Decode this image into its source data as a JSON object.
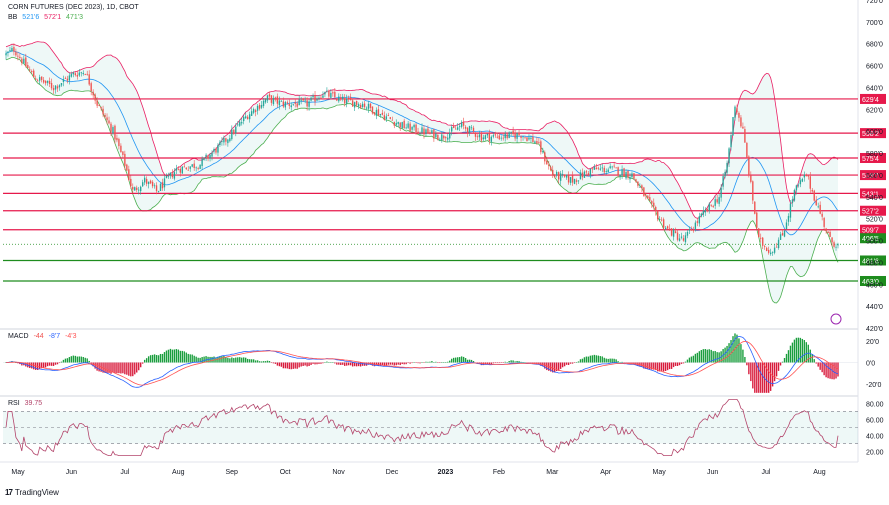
{
  "header": {
    "symbol_line": "CORN FUTURES (DEC 2023), 1D, CBOT",
    "bb_label": "BB",
    "bb_values": [
      "521'6",
      "572'1",
      "471'3"
    ],
    "macd_label": "MACD",
    "macd_values": [
      "-44",
      "-8'7",
      "-4'3"
    ],
    "rsi_label": "RSI",
    "rsi_value": "39.75"
  },
  "footer": {
    "brand": "TradingView"
  },
  "colors": {
    "up": "#26a69a",
    "down": "#ef5350",
    "bb_mid": "#2196f3",
    "bb_upper": "#e91e63",
    "bb_lower": "#4caf50",
    "res_line": "#e6194b",
    "sup_line": "#1e8c1e",
    "rsi": "#b3456b",
    "macd_line": "#2962ff",
    "signal_line": "#ff5252"
  },
  "chart_data": {
    "type": "candlestick",
    "title": "CORN FUTURES (DEC 2023), 1D, CBOT",
    "x_months": [
      "May",
      "Jun",
      "Jul",
      "Aug",
      "Sep",
      "Oct",
      "Nov",
      "Dec",
      "2023",
      "Feb",
      "Mar",
      "Apr",
      "May",
      "Jun",
      "Jul",
      "Aug"
    ],
    "price_axis": {
      "ylim": [
        420,
        720
      ],
      "ticks": [
        "720'0",
        "700'0",
        "680'0",
        "660'0",
        "640'0",
        "620'0",
        "600'0",
        "580'0",
        "560'0",
        "540'0",
        "520'0",
        "500'0",
        "480'0",
        "460'0",
        "440'0",
        "420'0"
      ],
      "tick_values": [
        720,
        700,
        680,
        660,
        640,
        620,
        600,
        580,
        560,
        540,
        520,
        500,
        480,
        460,
        440,
        420
      ]
    },
    "price_keypoints": [
      [
        0,
        670
      ],
      [
        4,
        675
      ],
      [
        14,
        650
      ],
      [
        24,
        640
      ],
      [
        34,
        652
      ],
      [
        40,
        655
      ],
      [
        46,
        625
      ],
      [
        54,
        600
      ],
      [
        60,
        570
      ],
      [
        64,
        545
      ],
      [
        70,
        555
      ],
      [
        76,
        545
      ],
      [
        86,
        565
      ],
      [
        98,
        570
      ],
      [
        110,
        590
      ],
      [
        122,
        615
      ],
      [
        132,
        630
      ],
      [
        140,
        625
      ],
      [
        152,
        625
      ],
      [
        160,
        635
      ],
      [
        170,
        628
      ],
      [
        180,
        625
      ],
      [
        190,
        615
      ],
      [
        200,
        605
      ],
      [
        210,
        600
      ],
      [
        220,
        595
      ],
      [
        230,
        605
      ],
      [
        240,
        595
      ],
      [
        250,
        595
      ],
      [
        260,
        597
      ],
      [
        268,
        590
      ],
      [
        276,
        560
      ],
      [
        286,
        555
      ],
      [
        296,
        565
      ],
      [
        306,
        565
      ],
      [
        316,
        560
      ],
      [
        326,
        530
      ],
      [
        334,
        510
      ],
      [
        342,
        500
      ],
      [
        350,
        520
      ],
      [
        360,
        540
      ],
      [
        364,
        570
      ],
      [
        368,
        625
      ],
      [
        372,
        600
      ],
      [
        376,
        550
      ],
      [
        380,
        500
      ],
      [
        386,
        490
      ],
      [
        392,
        505
      ],
      [
        398,
        545
      ],
      [
        404,
        560
      ],
      [
        410,
        530
      ],
      [
        416,
        500
      ],
      [
        420,
        496
      ]
    ],
    "bollinger": {
      "period": 20,
      "stddev": 2
    },
    "horizontal_levels": [
      {
        "label": "629'4",
        "value": 629.5,
        "kind": "resistance"
      },
      {
        "label": "598'2",
        "value": 598.25,
        "kind": "resistance"
      },
      {
        "label": "575'4",
        "value": 575.5,
        "kind": "resistance"
      },
      {
        "label": "559'7",
        "value": 559.875,
        "kind": "resistance"
      },
      {
        "label": "543'1",
        "value": 543.125,
        "kind": "resistance"
      },
      {
        "label": "527'2",
        "value": 527.25,
        "kind": "resistance"
      },
      {
        "label": "509'7",
        "value": 509.875,
        "kind": "resistance"
      },
      {
        "label": "481'6",
        "value": 481.75,
        "kind": "support"
      },
      {
        "label": "463'0",
        "value": 463.0,
        "kind": "support"
      }
    ],
    "last_price": {
      "label": "496'5",
      "value": 496.625
    },
    "macd_axis": {
      "ticks": [
        "20'0",
        "0'0",
        "-20'0"
      ],
      "tick_values": [
        20,
        0,
        -20
      ],
      "ylim": [
        -30,
        30
      ]
    },
    "rsi_axis": {
      "ticks": [
        "80.00",
        "60.00",
        "40.00",
        "20.00"
      ],
      "tick_values": [
        80,
        60,
        40,
        20
      ],
      "ylim": [
        12,
        88
      ],
      "band": [
        30,
        70
      ]
    }
  }
}
